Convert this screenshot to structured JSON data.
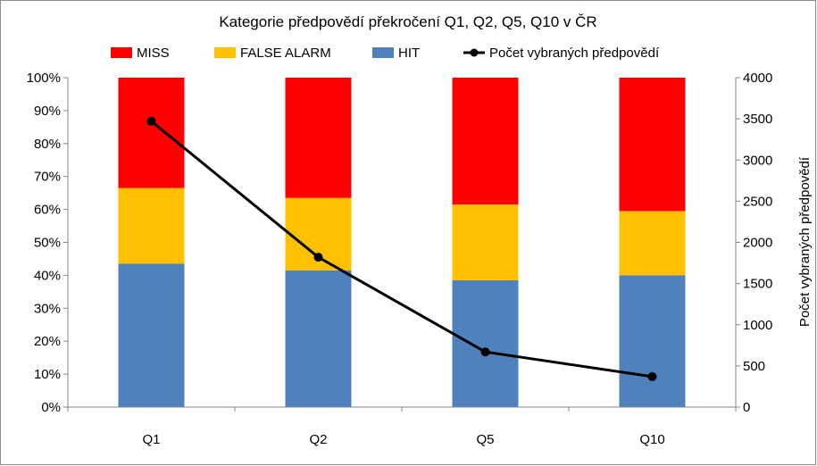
{
  "chart_data": {
    "type": "bar",
    "stacked": true,
    "title": "Kategorie předpovědí překročení Q1, Q2, Q5, Q10 v ČR",
    "categories": [
      "Q1",
      "Q2",
      "Q5",
      "Q10"
    ],
    "y_axis": {
      "ylim": [
        0,
        100
      ],
      "unit": "%",
      "tick_labels": [
        "0%",
        "10%",
        "20%",
        "30%",
        "40%",
        "50%",
        "60%",
        "70%",
        "80%",
        "90%",
        "100%"
      ]
    },
    "y2_axis": {
      "label": "Počet vybraných předpovědí",
      "ylim": [
        0,
        4000
      ],
      "tick_labels": [
        "0",
        "500",
        "1000",
        "1500",
        "2000",
        "2500",
        "3000",
        "3500",
        "4000"
      ]
    },
    "series": [
      {
        "name": "HIT",
        "color": "#4f81bd",
        "values": [
          43.5,
          41.5,
          38.5,
          40
        ]
      },
      {
        "name": "FALSE ALARM",
        "color": "#ffc000",
        "values": [
          23,
          22,
          23,
          19.5
        ]
      },
      {
        "name": "MISS",
        "color": "#ff0000",
        "values": [
          33.5,
          36.5,
          38.5,
          40.5
        ]
      }
    ],
    "line_series": {
      "name": "Počet vybraných předpovědí",
      "axis": "y2",
      "color": "#000000",
      "values": [
        3470,
        1820,
        670,
        370
      ]
    },
    "legend": {
      "placement": "top",
      "order": [
        "MISS",
        "FALSE ALARM",
        "HIT",
        "Počet vybraných předpovědí"
      ]
    },
    "grid": false
  }
}
